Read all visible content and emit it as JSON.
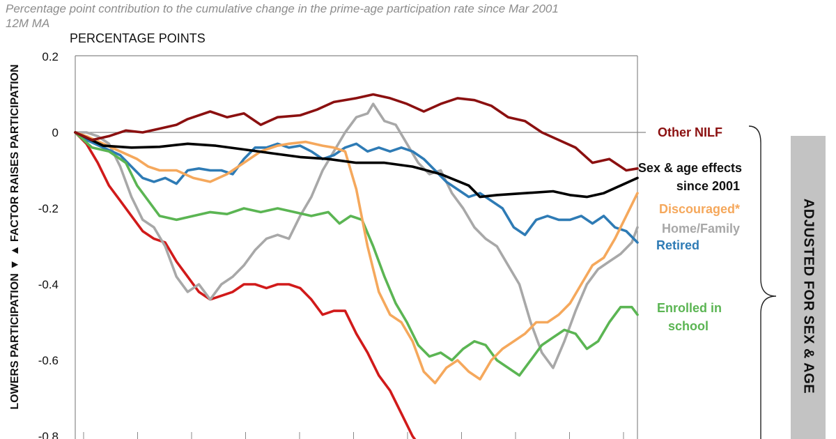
{
  "header": {
    "subtitle": "Percentage point contribution to the cumulative change in the prime-age participation rate since Mar 2001",
    "ma_note": "12M MA",
    "units": "PERCENTAGE POINTS",
    "ylabel": "LOWERS PARTICIPATION ▼ ▲ FACTOR RAISES PARTICIPATION",
    "side_label": "ADJUSTED FOR SEX & AGE"
  },
  "chart_data": {
    "type": "line",
    "ylim": [
      -0.8,
      0.2
    ],
    "yticks": [
      "0.2",
      "0",
      "-0.2",
      "-0.4",
      "-0.6",
      "-0.8"
    ],
    "grid": false,
    "note": "x axis spans months from Mar 2001 onward; vertical tick marks at regular intervals, no tick labels visible",
    "xlim": [
      0,
      1
    ],
    "series": [
      {
        "name": "Other NILF",
        "color": "#8b1010",
        "points": [
          [
            0.0,
            0.0
          ],
          [
            0.03,
            -0.02
          ],
          [
            0.06,
            -0.01
          ],
          [
            0.09,
            0.005
          ],
          [
            0.12,
            0.0
          ],
          [
            0.15,
            0.01
          ],
          [
            0.18,
            0.02
          ],
          [
            0.2,
            0.035
          ],
          [
            0.24,
            0.055
          ],
          [
            0.27,
            0.04
          ],
          [
            0.3,
            0.05
          ],
          [
            0.33,
            0.02
          ],
          [
            0.36,
            0.04
          ],
          [
            0.4,
            0.045
          ],
          [
            0.43,
            0.06
          ],
          [
            0.46,
            0.08
          ],
          [
            0.5,
            0.09
          ],
          [
            0.53,
            0.1
          ],
          [
            0.56,
            0.09
          ],
          [
            0.59,
            0.075
          ],
          [
            0.62,
            0.055
          ],
          [
            0.65,
            0.075
          ],
          [
            0.68,
            0.09
          ],
          [
            0.71,
            0.085
          ],
          [
            0.74,
            0.07
          ],
          [
            0.77,
            0.04
          ],
          [
            0.8,
            0.03
          ],
          [
            0.83,
            0.0
          ],
          [
            0.86,
            -0.02
          ],
          [
            0.89,
            -0.04
          ],
          [
            0.92,
            -0.08
          ],
          [
            0.95,
            -0.07
          ],
          [
            0.98,
            -0.1
          ],
          [
            1.0,
            -0.095
          ]
        ]
      },
      {
        "name": "Sex & age effects since 2001",
        "color": "#000000",
        "points": [
          [
            0.0,
            0.0
          ],
          [
            0.05,
            -0.035
          ],
          [
            0.1,
            -0.04
          ],
          [
            0.15,
            -0.038
          ],
          [
            0.2,
            -0.03
          ],
          [
            0.25,
            -0.035
          ],
          [
            0.3,
            -0.045
          ],
          [
            0.35,
            -0.055
          ],
          [
            0.4,
            -0.065
          ],
          [
            0.45,
            -0.07
          ],
          [
            0.5,
            -0.08
          ],
          [
            0.55,
            -0.08
          ],
          [
            0.6,
            -0.09
          ],
          [
            0.65,
            -0.11
          ],
          [
            0.7,
            -0.14
          ],
          [
            0.72,
            -0.17
          ],
          [
            0.75,
            -0.165
          ],
          [
            0.8,
            -0.16
          ],
          [
            0.85,
            -0.155
          ],
          [
            0.88,
            -0.165
          ],
          [
            0.91,
            -0.17
          ],
          [
            0.94,
            -0.16
          ],
          [
            0.97,
            -0.14
          ],
          [
            1.0,
            -0.12
          ]
        ]
      },
      {
        "name": "Discouraged*",
        "color": "#f5a85c",
        "points": [
          [
            0.0,
            0.0
          ],
          [
            0.02,
            -0.01
          ],
          [
            0.05,
            -0.03
          ],
          [
            0.08,
            -0.05
          ],
          [
            0.11,
            -0.07
          ],
          [
            0.13,
            -0.09
          ],
          [
            0.15,
            -0.1
          ],
          [
            0.18,
            -0.1
          ],
          [
            0.21,
            -0.12
          ],
          [
            0.24,
            -0.13
          ],
          [
            0.27,
            -0.11
          ],
          [
            0.3,
            -0.08
          ],
          [
            0.33,
            -0.05
          ],
          [
            0.36,
            -0.035
          ],
          [
            0.38,
            -0.03
          ],
          [
            0.41,
            -0.025
          ],
          [
            0.44,
            -0.035
          ],
          [
            0.46,
            -0.04
          ],
          [
            0.48,
            -0.05
          ],
          [
            0.5,
            -0.15
          ],
          [
            0.52,
            -0.3
          ],
          [
            0.54,
            -0.42
          ],
          [
            0.56,
            -0.48
          ],
          [
            0.58,
            -0.5
          ],
          [
            0.6,
            -0.55
          ],
          [
            0.62,
            -0.63
          ],
          [
            0.64,
            -0.66
          ],
          [
            0.66,
            -0.62
          ],
          [
            0.68,
            -0.6
          ],
          [
            0.7,
            -0.63
          ],
          [
            0.72,
            -0.65
          ],
          [
            0.74,
            -0.6
          ],
          [
            0.76,
            -0.57
          ],
          [
            0.78,
            -0.55
          ],
          [
            0.8,
            -0.53
          ],
          [
            0.82,
            -0.5
          ],
          [
            0.84,
            -0.5
          ],
          [
            0.86,
            -0.48
          ],
          [
            0.88,
            -0.45
          ],
          [
            0.9,
            -0.4
          ],
          [
            0.92,
            -0.35
          ],
          [
            0.94,
            -0.33
          ],
          [
            0.96,
            -0.28
          ],
          [
            0.98,
            -0.22
          ],
          [
            1.0,
            -0.16
          ]
        ]
      },
      {
        "name": "Home/Family",
        "color": "#a8a8a8",
        "points": [
          [
            0.0,
            0.0
          ],
          [
            0.02,
            0.0
          ],
          [
            0.04,
            -0.01
          ],
          [
            0.06,
            -0.03
          ],
          [
            0.08,
            -0.09
          ],
          [
            0.1,
            -0.17
          ],
          [
            0.12,
            -0.23
          ],
          [
            0.14,
            -0.25
          ],
          [
            0.16,
            -0.3
          ],
          [
            0.18,
            -0.38
          ],
          [
            0.2,
            -0.42
          ],
          [
            0.22,
            -0.4
          ],
          [
            0.24,
            -0.44
          ],
          [
            0.26,
            -0.4
          ],
          [
            0.28,
            -0.38
          ],
          [
            0.3,
            -0.35
          ],
          [
            0.32,
            -0.31
          ],
          [
            0.34,
            -0.28
          ],
          [
            0.36,
            -0.27
          ],
          [
            0.38,
            -0.28
          ],
          [
            0.4,
            -0.22
          ],
          [
            0.42,
            -0.17
          ],
          [
            0.44,
            -0.1
          ],
          [
            0.46,
            -0.05
          ],
          [
            0.48,
            0.0
          ],
          [
            0.5,
            0.04
          ],
          [
            0.52,
            0.05
          ],
          [
            0.53,
            0.075
          ],
          [
            0.55,
            0.03
          ],
          [
            0.57,
            0.02
          ],
          [
            0.59,
            -0.03
          ],
          [
            0.61,
            -0.08
          ],
          [
            0.63,
            -0.11
          ],
          [
            0.65,
            -0.1
          ],
          [
            0.67,
            -0.16
          ],
          [
            0.69,
            -0.2
          ],
          [
            0.71,
            -0.25
          ],
          [
            0.73,
            -0.28
          ],
          [
            0.75,
            -0.3
          ],
          [
            0.77,
            -0.35
          ],
          [
            0.79,
            -0.4
          ],
          [
            0.81,
            -0.5
          ],
          [
            0.83,
            -0.58
          ],
          [
            0.85,
            -0.62
          ],
          [
            0.87,
            -0.55
          ],
          [
            0.89,
            -0.47
          ],
          [
            0.91,
            -0.4
          ],
          [
            0.93,
            -0.36
          ],
          [
            0.95,
            -0.34
          ],
          [
            0.97,
            -0.32
          ],
          [
            0.99,
            -0.29
          ],
          [
            1.0,
            -0.25
          ]
        ]
      },
      {
        "name": "Retired",
        "color": "#2e7bb5",
        "points": [
          [
            0.0,
            0.0
          ],
          [
            0.02,
            -0.02
          ],
          [
            0.05,
            -0.04
          ],
          [
            0.08,
            -0.06
          ],
          [
            0.1,
            -0.09
          ],
          [
            0.12,
            -0.12
          ],
          [
            0.14,
            -0.13
          ],
          [
            0.16,
            -0.12
          ],
          [
            0.18,
            -0.135
          ],
          [
            0.2,
            -0.1
          ],
          [
            0.22,
            -0.095
          ],
          [
            0.24,
            -0.1
          ],
          [
            0.26,
            -0.1
          ],
          [
            0.28,
            -0.11
          ],
          [
            0.3,
            -0.07
          ],
          [
            0.32,
            -0.04
          ],
          [
            0.34,
            -0.04
          ],
          [
            0.36,
            -0.03
          ],
          [
            0.38,
            -0.04
          ],
          [
            0.4,
            -0.035
          ],
          [
            0.42,
            -0.05
          ],
          [
            0.44,
            -0.07
          ],
          [
            0.46,
            -0.06
          ],
          [
            0.48,
            -0.04
          ],
          [
            0.5,
            -0.03
          ],
          [
            0.52,
            -0.05
          ],
          [
            0.54,
            -0.04
          ],
          [
            0.56,
            -0.05
          ],
          [
            0.58,
            -0.04
          ],
          [
            0.6,
            -0.05
          ],
          [
            0.62,
            -0.07
          ],
          [
            0.64,
            -0.1
          ],
          [
            0.66,
            -0.13
          ],
          [
            0.68,
            -0.15
          ],
          [
            0.7,
            -0.17
          ],
          [
            0.72,
            -0.16
          ],
          [
            0.74,
            -0.18
          ],
          [
            0.76,
            -0.2
          ],
          [
            0.78,
            -0.25
          ],
          [
            0.8,
            -0.27
          ],
          [
            0.82,
            -0.23
          ],
          [
            0.84,
            -0.22
          ],
          [
            0.86,
            -0.23
          ],
          [
            0.88,
            -0.23
          ],
          [
            0.9,
            -0.22
          ],
          [
            0.92,
            -0.24
          ],
          [
            0.94,
            -0.22
          ],
          [
            0.96,
            -0.25
          ],
          [
            0.98,
            -0.26
          ],
          [
            1.0,
            -0.29
          ]
        ]
      },
      {
        "name": "Enrolled in school",
        "color": "#5bb553",
        "points": [
          [
            0.0,
            0.0
          ],
          [
            0.03,
            -0.04
          ],
          [
            0.06,
            -0.05
          ],
          [
            0.09,
            -0.08
          ],
          [
            0.11,
            -0.14
          ],
          [
            0.13,
            -0.18
          ],
          [
            0.15,
            -0.22
          ],
          [
            0.18,
            -0.23
          ],
          [
            0.21,
            -0.22
          ],
          [
            0.24,
            -0.21
          ],
          [
            0.27,
            -0.215
          ],
          [
            0.3,
            -0.2
          ],
          [
            0.33,
            -0.21
          ],
          [
            0.36,
            -0.2
          ],
          [
            0.39,
            -0.21
          ],
          [
            0.42,
            -0.22
          ],
          [
            0.45,
            -0.21
          ],
          [
            0.47,
            -0.24
          ],
          [
            0.49,
            -0.22
          ],
          [
            0.51,
            -0.23
          ],
          [
            0.53,
            -0.3
          ],
          [
            0.55,
            -0.38
          ],
          [
            0.57,
            -0.45
          ],
          [
            0.59,
            -0.5
          ],
          [
            0.61,
            -0.56
          ],
          [
            0.63,
            -0.59
          ],
          [
            0.65,
            -0.58
          ],
          [
            0.67,
            -0.6
          ],
          [
            0.69,
            -0.57
          ],
          [
            0.71,
            -0.55
          ],
          [
            0.73,
            -0.56
          ],
          [
            0.75,
            -0.6
          ],
          [
            0.77,
            -0.62
          ],
          [
            0.79,
            -0.64
          ],
          [
            0.81,
            -0.6
          ],
          [
            0.83,
            -0.56
          ],
          [
            0.85,
            -0.54
          ],
          [
            0.87,
            -0.52
          ],
          [
            0.89,
            -0.53
          ],
          [
            0.91,
            -0.57
          ],
          [
            0.93,
            -0.55
          ],
          [
            0.95,
            -0.5
          ],
          [
            0.97,
            -0.46
          ],
          [
            0.99,
            -0.46
          ],
          [
            1.0,
            -0.48
          ]
        ]
      },
      {
        "name": "",
        "color": "#d11a1a",
        "points": [
          [
            0.0,
            0.0
          ],
          [
            0.02,
            -0.03
          ],
          [
            0.04,
            -0.08
          ],
          [
            0.06,
            -0.14
          ],
          [
            0.08,
            -0.18
          ],
          [
            0.1,
            -0.22
          ],
          [
            0.12,
            -0.26
          ],
          [
            0.14,
            -0.28
          ],
          [
            0.16,
            -0.29
          ],
          [
            0.18,
            -0.34
          ],
          [
            0.2,
            -0.38
          ],
          [
            0.22,
            -0.42
          ],
          [
            0.24,
            -0.44
          ],
          [
            0.26,
            -0.43
          ],
          [
            0.28,
            -0.42
          ],
          [
            0.3,
            -0.4
          ],
          [
            0.32,
            -0.4
          ],
          [
            0.34,
            -0.41
          ],
          [
            0.36,
            -0.4
          ],
          [
            0.38,
            -0.4
          ],
          [
            0.4,
            -0.41
          ],
          [
            0.42,
            -0.44
          ],
          [
            0.44,
            -0.48
          ],
          [
            0.46,
            -0.47
          ],
          [
            0.48,
            -0.47
          ],
          [
            0.5,
            -0.53
          ],
          [
            0.52,
            -0.58
          ],
          [
            0.54,
            -0.64
          ],
          [
            0.56,
            -0.68
          ],
          [
            0.58,
            -0.74
          ],
          [
            0.6,
            -0.8
          ],
          [
            0.61,
            -0.82
          ]
        ]
      }
    ]
  },
  "labels": [
    {
      "text": "Other NILF",
      "color": "#8b1010"
    },
    {
      "text": "Sex & age effects",
      "color": "#111111"
    },
    {
      "text": "since 2001",
      "color": "#111111"
    },
    {
      "text": "Discouraged*",
      "color": "#f5a85c"
    },
    {
      "text": "Home/Family",
      "color": "#a8a8a8"
    },
    {
      "text": "Retired",
      "color": "#2e7bb5"
    },
    {
      "text": "Enrolled in",
      "color": "#5bb553"
    },
    {
      "text": "school",
      "color": "#5bb553"
    }
  ]
}
